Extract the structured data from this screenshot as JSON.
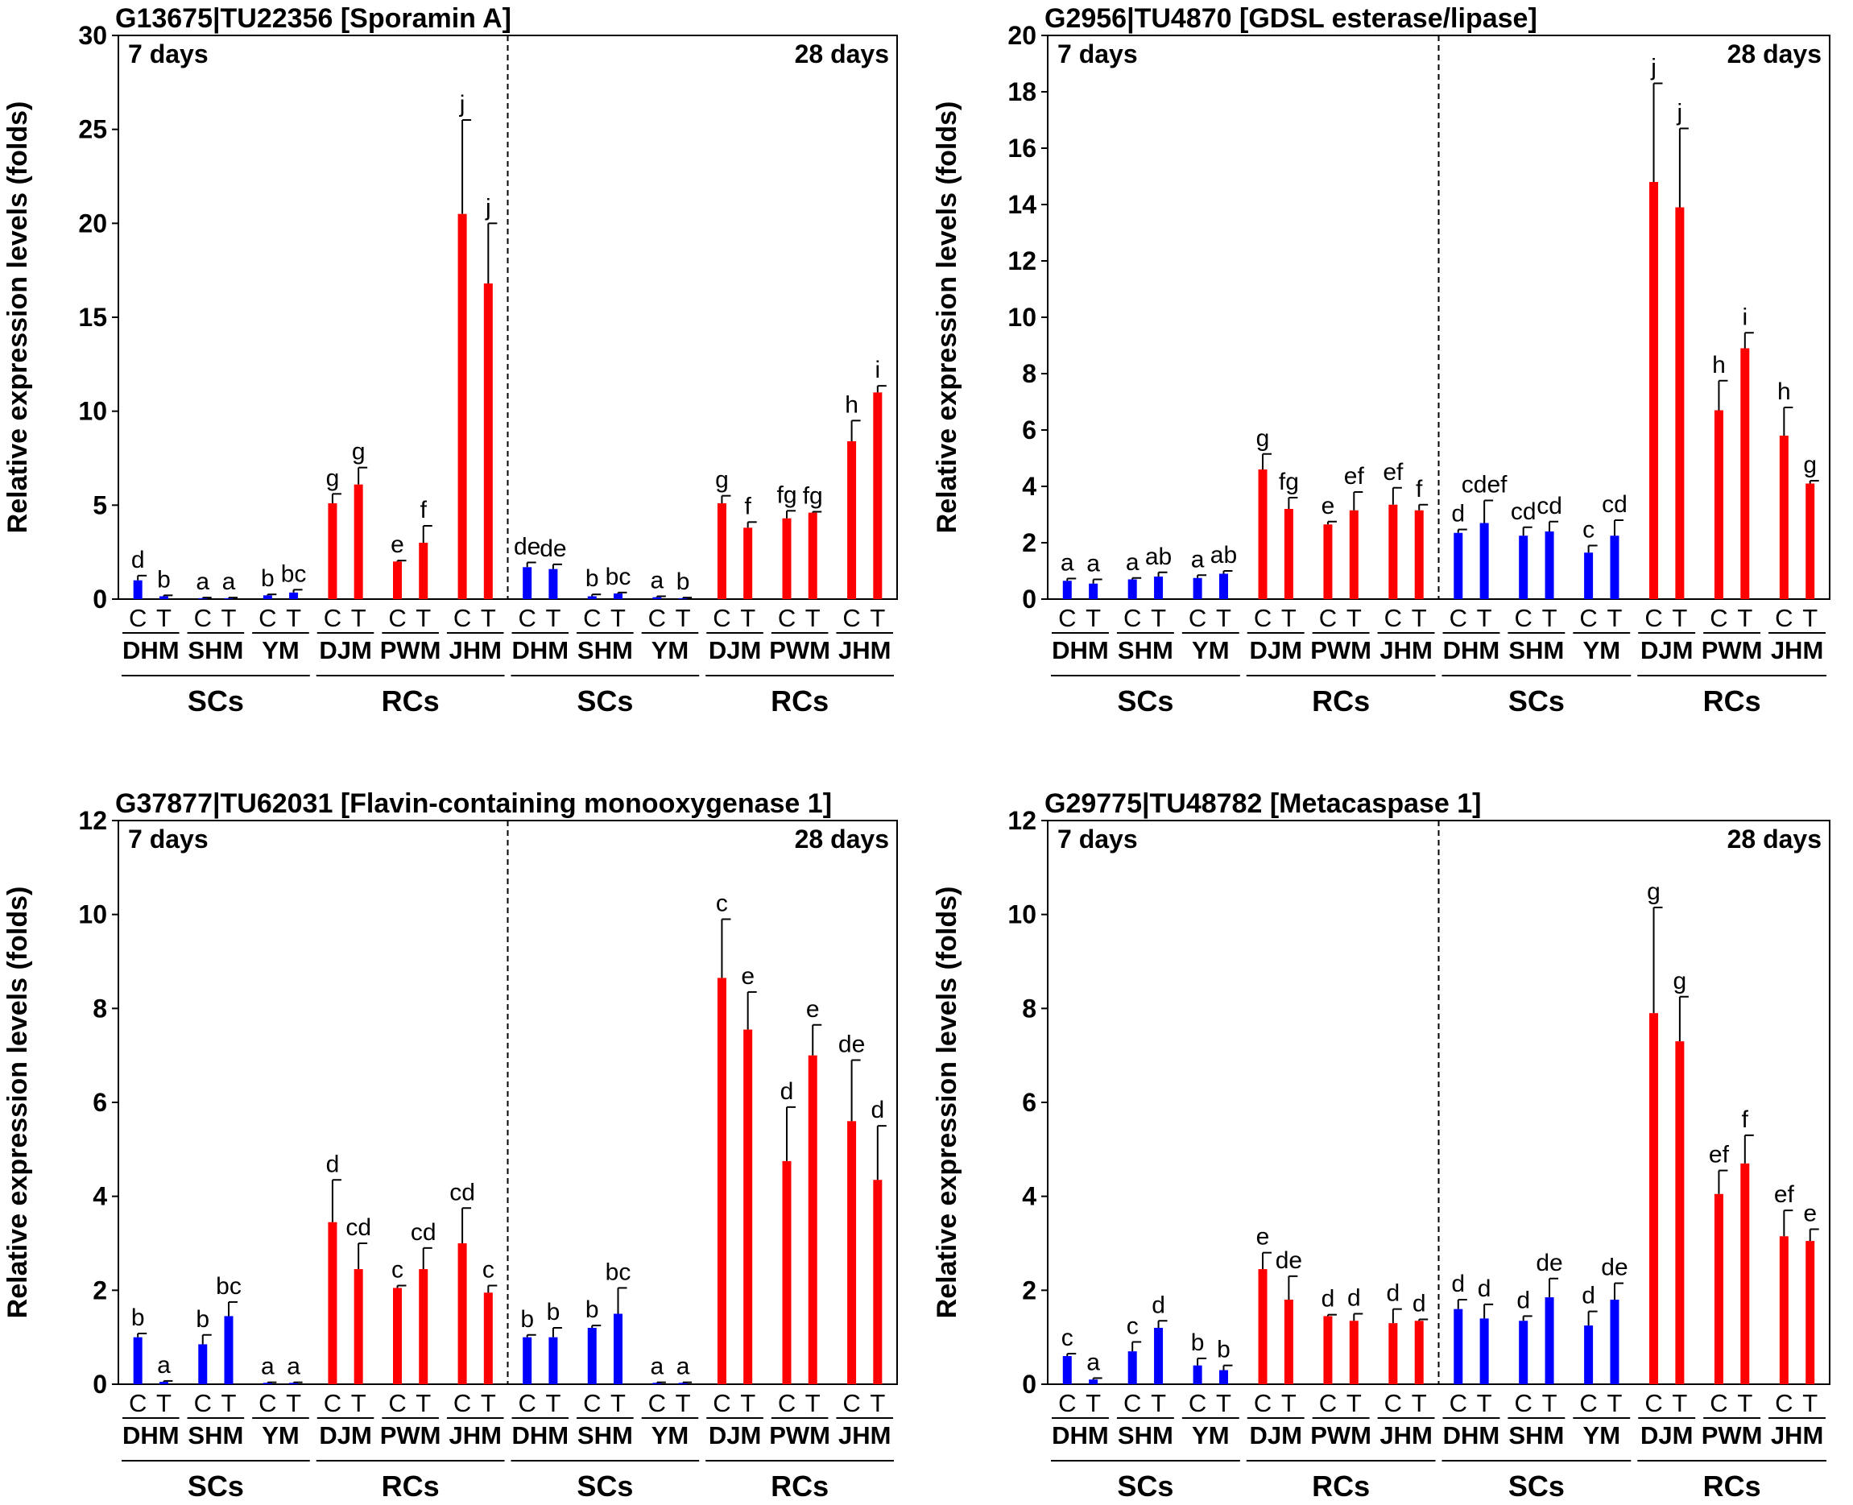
{
  "labels": {
    "y_axis": "Relative expression levels (folds)",
    "period_left": "7 days",
    "period_right": "28 days",
    "control": "C",
    "treatment": "T",
    "groups": [
      "DHM",
      "SHM",
      "YM",
      "DJM",
      "PWM",
      "JHM"
    ],
    "types": [
      "SCs",
      "RCs"
    ]
  },
  "colors": {
    "SCs": "#0000ff",
    "RCs": "#ff0000",
    "error_bar": "#000000",
    "axis": "#000000"
  },
  "chart_data": [
    {
      "type": "bar",
      "title": "G13675|TU22356 [Sporamin A]",
      "ylabel": "Relative expression levels (folds)",
      "ylim": [
        0,
        30
      ],
      "yticks": [
        0,
        5,
        10,
        15,
        20,
        25,
        30
      ],
      "values": [
        1.0,
        0.15,
        0.05,
        0.05,
        0.2,
        0.35,
        5.1,
        6.1,
        2.0,
        3.0,
        20.5,
        16.8,
        1.7,
        1.6,
        0.15,
        0.3,
        0.1,
        0.05,
        5.1,
        3.8,
        4.3,
        4.6,
        8.4,
        11.0
      ],
      "errors": [
        0.25,
        0.05,
        0.03,
        0.03,
        0.05,
        0.15,
        0.5,
        0.9,
        0.05,
        0.9,
        5.0,
        3.2,
        0.25,
        0.25,
        0.1,
        0.05,
        0.05,
        0.03,
        0.4,
        0.3,
        0.4,
        0.05,
        1.1,
        0.35
      ],
      "letters": [
        "d",
        "b",
        "a",
        "a",
        "b",
        "bc",
        "g",
        "g",
        "e",
        "f",
        "j",
        "j",
        "de",
        "de",
        "b",
        "bc",
        "a",
        "b",
        "g",
        "f",
        "fg",
        "fg",
        "h",
        "i"
      ]
    },
    {
      "type": "bar",
      "title": "G2956|TU4870 [GDSL esterase/lipase]",
      "ylabel": "Relative expression levels (folds)",
      "ylim": [
        0,
        20
      ],
      "yticks": [
        0,
        2,
        4,
        6,
        8,
        10,
        12,
        14,
        16,
        18,
        20
      ],
      "values": [
        0.65,
        0.55,
        0.7,
        0.8,
        0.75,
        0.9,
        4.6,
        3.2,
        2.65,
        3.15,
        3.35,
        3.15,
        2.35,
        2.7,
        2.25,
        2.4,
        1.65,
        2.25,
        14.8,
        13.9,
        6.7,
        8.9,
        5.8,
        4.1
      ],
      "errors": [
        0.08,
        0.15,
        0.05,
        0.15,
        0.1,
        0.1,
        0.55,
        0.4,
        0.1,
        0.65,
        0.6,
        0.2,
        0.12,
        0.8,
        0.3,
        0.35,
        0.25,
        0.55,
        3.5,
        2.8,
        1.05,
        0.55,
        1.0,
        0.1
      ],
      "letters": [
        "a",
        "a",
        "a",
        "ab",
        "a",
        "ab",
        "g",
        "fg",
        "e",
        "ef",
        "ef",
        "f",
        "d",
        "cdef",
        "cd",
        "cd",
        "c",
        "cd",
        "j",
        "j",
        "h",
        "i",
        "h",
        "g"
      ]
    },
    {
      "type": "bar",
      "title": "G37877|TU62031 [Flavin-containing monooxygenase 1]",
      "ylabel": "Relative expression levels (folds)",
      "ylim": [
        0,
        12
      ],
      "yticks": [
        0,
        2,
        4,
        6,
        8,
        10,
        12
      ],
      "values": [
        1.0,
        0.05,
        0.85,
        1.45,
        0.03,
        0.03,
        3.45,
        2.45,
        2.05,
        2.45,
        3.0,
        1.95,
        1.0,
        1.0,
        1.2,
        1.5,
        0.03,
        0.03,
        8.65,
        7.55,
        4.75,
        7.0,
        5.6,
        4.35
      ],
      "errors": [
        0.08,
        0.02,
        0.2,
        0.3,
        0.01,
        0.01,
        0.9,
        0.55,
        0.05,
        0.45,
        0.75,
        0.15,
        0.05,
        0.2,
        0.05,
        0.55,
        0.01,
        0.01,
        1.25,
        0.8,
        1.15,
        0.65,
        1.3,
        1.15
      ],
      "letters": [
        "b",
        "a",
        "b",
        "bc",
        "a",
        "a",
        "d",
        "cd",
        "c",
        "cd",
        "cd",
        "c",
        "b",
        "b",
        "b",
        "bc",
        "a",
        "a",
        "c",
        "e",
        "d",
        "e",
        "de",
        "d"
      ]
    },
    {
      "type": "bar",
      "title": "G29775|TU48782 [Metacaspase 1]",
      "ylabel": "Relative expression levels (folds)",
      "ylim": [
        0,
        12
      ],
      "yticks": [
        0,
        2,
        4,
        6,
        8,
        10,
        12
      ],
      "values": [
        0.6,
        0.1,
        0.7,
        1.2,
        0.4,
        0.3,
        2.45,
        1.8,
        1.45,
        1.35,
        1.3,
        1.35,
        1.6,
        1.4,
        1.35,
        1.85,
        1.25,
        1.8,
        7.9,
        7.3,
        4.05,
        4.7,
        3.15,
        3.05
      ],
      "errors": [
        0.05,
        0.03,
        0.2,
        0.15,
        0.15,
        0.1,
        0.35,
        0.5,
        0.03,
        0.15,
        0.3,
        0.03,
        0.2,
        0.3,
        0.1,
        0.4,
        0.3,
        0.35,
        2.25,
        0.95,
        0.5,
        0.6,
        0.55,
        0.25
      ],
      "letters": [
        "c",
        "a",
        "c",
        "d",
        "b",
        "b",
        "e",
        "de",
        "d",
        "d",
        "d",
        "d",
        "d",
        "d",
        "d",
        "de",
        "d",
        "de",
        "g",
        "g",
        "ef",
        "f",
        "ef",
        "e"
      ]
    }
  ]
}
